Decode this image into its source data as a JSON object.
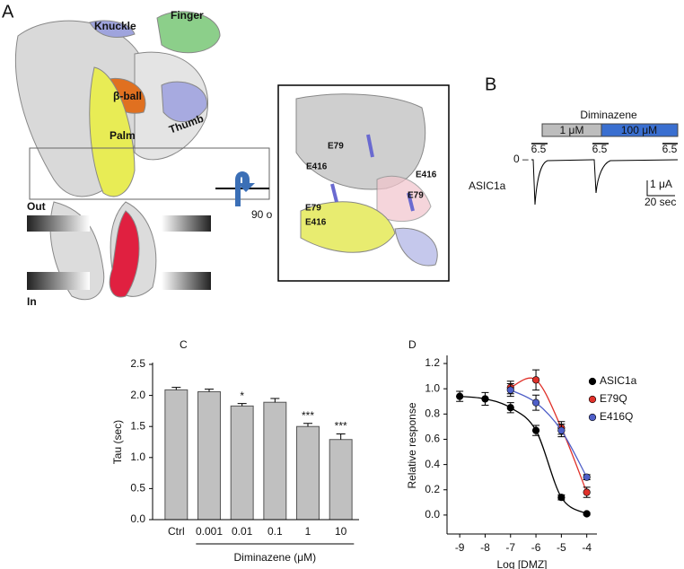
{
  "panels": {
    "a": {
      "label": "A",
      "domains": [
        "Knuckle",
        "Finger",
        "β-ball",
        "Palm",
        "Thumb"
      ],
      "membrane": [
        "Out",
        "In"
      ],
      "rotation": "90 o",
      "residues": [
        "E79",
        "E416",
        "E416",
        "E79",
        "E79",
        "E416"
      ]
    },
    "b": {
      "label": "B",
      "drug": "Diminazene",
      "concentrations": [
        "1 μM",
        "100 μM"
      ],
      "ph": [
        "6.5",
        "6.5",
        "6.5"
      ],
      "zero": "0 –",
      "trace": "ASIC1a",
      "scale_current": "1 μA",
      "scale_time": "20 sec"
    }
  },
  "chart_data": [
    {
      "type": "bar",
      "panel": "C",
      "ylabel": "Tau (sec)",
      "xlabel": "Diminazene (μM)",
      "categories": [
        "Ctrl",
        "0.001",
        "0.01",
        "0.1",
        "1",
        "10"
      ],
      "values": [
        2.09,
        2.06,
        1.83,
        1.89,
        1.5,
        1.29
      ],
      "errors": [
        0.04,
        0.04,
        0.04,
        0.06,
        0.05,
        0.09
      ],
      "annotations": [
        null,
        null,
        "*",
        null,
        "***",
        "***"
      ],
      "color": "#c0c0c0",
      "ylim": [
        0,
        2.5
      ],
      "yticks": [
        {
          "value": 0,
          "label": "0.0"
        },
        {
          "value": 0.5,
          "label": "0.5"
        },
        {
          "value": 1,
          "label": "1.0"
        },
        {
          "value": 1.5,
          "label": "1.5"
        },
        {
          "value": 2,
          "label": "2.0"
        },
        {
          "value": 2.5,
          "label": "2.5"
        }
      ]
    },
    {
      "type": "line",
      "panel": "D",
      "ylabel": "Relative response",
      "xlabel": "Log [DMZ]",
      "legend": "upper right",
      "series": [
        {
          "name": "ASIC1a",
          "color": "#000000",
          "x": [
            -9,
            -8,
            -7,
            -6,
            -5,
            -4
          ],
          "values": [
            0.94,
            0.92,
            0.85,
            0.67,
            0.14,
            0.01
          ],
          "errors": [
            0.04,
            0.05,
            0.04,
            0.04,
            0.02,
            0.01
          ]
        },
        {
          "name": "E79Q",
          "color": "#e0312a",
          "x": [
            -7,
            -6,
            -5,
            -4
          ],
          "values": [
            1.01,
            1.07,
            0.69,
            0.18
          ],
          "errors": [
            0.05,
            0.08,
            0.05,
            0.04
          ]
        },
        {
          "name": "E416Q",
          "color": "#4f5fc8",
          "x": [
            -7,
            -6,
            -5,
            -4
          ],
          "values": [
            0.99,
            0.89,
            0.67,
            0.3
          ],
          "errors": [
            0.05,
            0.06,
            0.05,
            0.02
          ]
        }
      ],
      "xlim": [
        -9.5,
        -3.6
      ],
      "xticks": [
        -9,
        -8,
        -7,
        -6,
        -5,
        -4
      ],
      "ylim": [
        -0.15,
        1.25
      ],
      "yticks": [
        {
          "value": 0,
          "label": "0.0"
        },
        {
          "value": 0.2,
          "label": "0.2"
        },
        {
          "value": 0.4,
          "label": "0.4"
        },
        {
          "value": 0.6,
          "label": "0.6"
        },
        {
          "value": 0.8,
          "label": "0.8"
        },
        {
          "value": 1,
          "label": "1.0"
        },
        {
          "value": 1.2,
          "label": "1.2"
        }
      ]
    }
  ]
}
